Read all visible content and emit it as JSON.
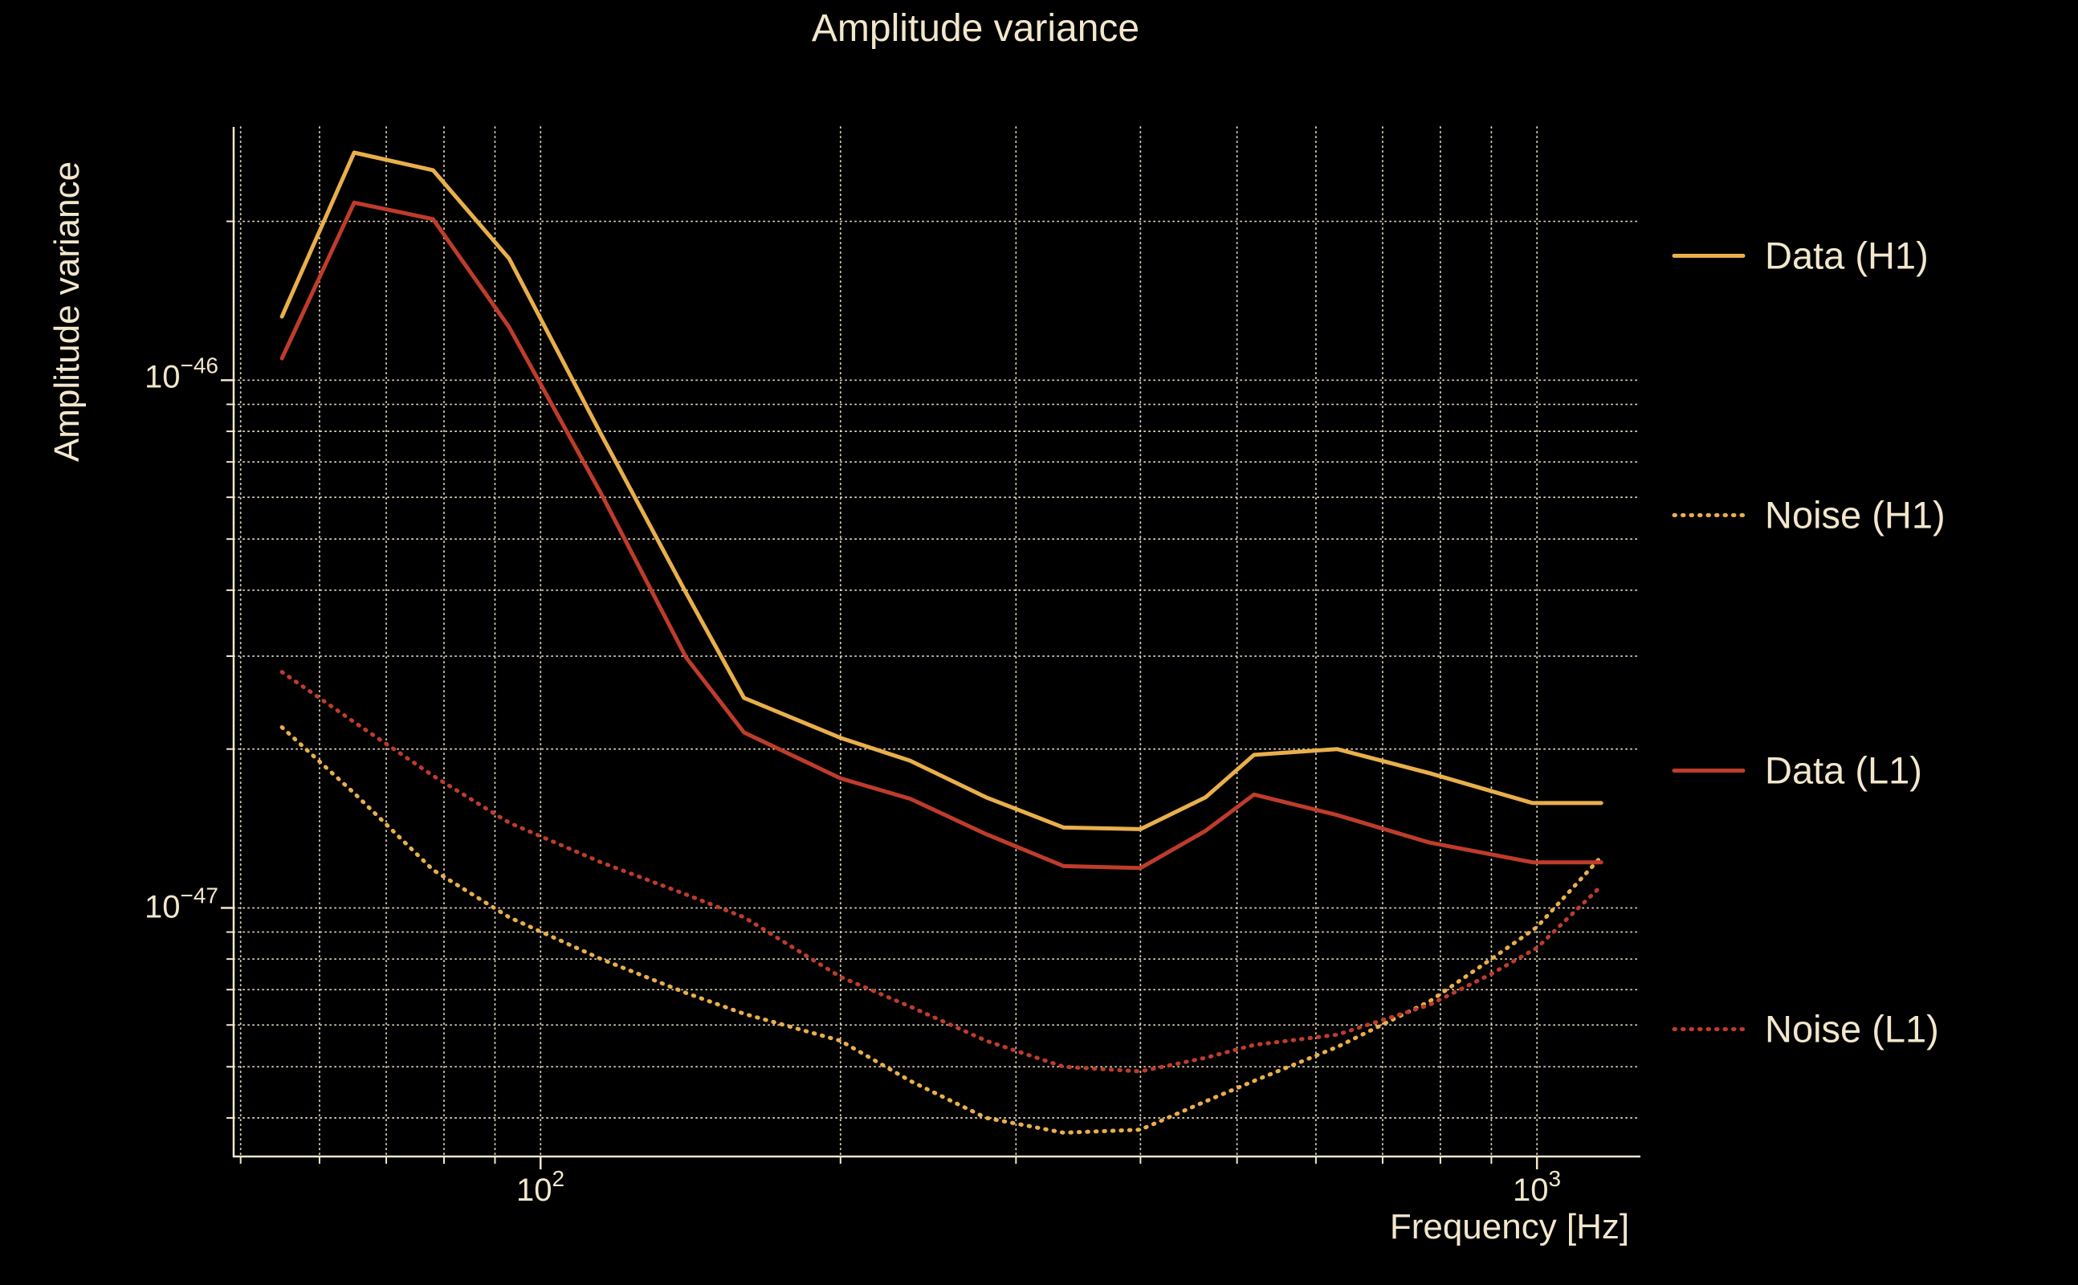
{
  "title": "Amplitude variance",
  "colors": {
    "background": "#000000",
    "foreground": "#f2e7cc",
    "h1_gold": "#e9af4b",
    "l1_red": "#be3c2b"
  },
  "y_axis": {
    "label": "Amplitude variance",
    "ticks": [
      {
        "base": "10",
        "exp": "−46"
      },
      {
        "base": "10",
        "exp": "−47"
      }
    ]
  },
  "x_axis": {
    "label": "Frequency [Hz]",
    "ticks": [
      {
        "base": "10",
        "exp": "2"
      },
      {
        "base": "10",
        "exp": "3"
      }
    ]
  },
  "legend": [
    {
      "label": "Data (H1)",
      "color": "#e9af4b",
      "style": "solid"
    },
    {
      "label": "Noise (H1)",
      "color": "#e9af4b",
      "style": "dotted"
    },
    {
      "label": "Data (L1)",
      "color": "#be3c2b",
      "style": "solid"
    },
    {
      "label": "Noise (L1)",
      "color": "#be3c2b",
      "style": "dotted"
    }
  ],
  "chart_data": {
    "type": "line",
    "title": "Amplitude variance",
    "xlabel": "Frequency [Hz]",
    "ylabel": "Amplitude variance",
    "x_scale": "log",
    "y_scale": "log",
    "xlim": [
      49.2,
      1270
    ],
    "ylim": [
      3.38e-48,
      3.02e-46
    ],
    "grid": true,
    "legend_position": "right-outside",
    "x_gridlines": [
      50,
      60,
      70,
      80,
      90,
      100,
      200,
      300,
      400,
      500,
      600,
      700,
      800,
      900,
      1000
    ],
    "x_major_ticks": [
      100,
      1000
    ],
    "y_gridlines": [
      4e-48,
      5e-48,
      6e-48,
      7e-48,
      8e-48,
      9e-48,
      1e-47,
      2e-47,
      3e-47,
      4e-47,
      5e-47,
      6e-47,
      7e-47,
      8e-47,
      9e-47,
      1e-46,
      2e-46
    ],
    "y_major_ticks": [
      1e-46,
      1e-47
    ],
    "series": [
      {
        "name": "Data (H1)",
        "color": "#e9af4b",
        "style": "solid",
        "points": [
          [
            55,
            1.32e-46
          ],
          [
            65,
            2.7e-46
          ],
          [
            78,
            2.5e-46
          ],
          [
            93,
            1.7e-46
          ],
          [
            115,
            7.9e-47
          ],
          [
            140,
            3.95e-47
          ],
          [
            160,
            2.5e-47
          ],
          [
            200,
            2.1e-47
          ],
          [
            235,
            1.9e-47
          ],
          [
            280,
            1.62e-47
          ],
          [
            335,
            1.42e-47
          ],
          [
            400,
            1.41e-47
          ],
          [
            465,
            1.62e-47
          ],
          [
            520,
            1.95e-47
          ],
          [
            630,
            2e-47
          ],
          [
            780,
            1.8e-47
          ],
          [
            990,
            1.58e-47
          ],
          [
            1160,
            1.58e-47
          ]
        ]
      },
      {
        "name": "Noise (H1)",
        "color": "#e9af4b",
        "style": "dotted",
        "points": [
          [
            55,
            2.2e-47
          ],
          [
            65,
            1.65e-47
          ],
          [
            78,
            1.18e-47
          ],
          [
            93,
            9.6e-48
          ],
          [
            115,
            8e-48
          ],
          [
            140,
            6.9e-48
          ],
          [
            160,
            6.3e-48
          ],
          [
            200,
            5.6e-48
          ],
          [
            235,
            4.7e-48
          ],
          [
            280,
            4e-48
          ],
          [
            335,
            3.75e-48
          ],
          [
            400,
            3.8e-48
          ],
          [
            465,
            4.3e-48
          ],
          [
            520,
            4.7e-48
          ],
          [
            630,
            5.45e-48
          ],
          [
            780,
            6.65e-48
          ],
          [
            900,
            8e-48
          ],
          [
            1000,
            9.2e-48
          ],
          [
            1160,
            1.25e-47
          ]
        ]
      },
      {
        "name": "Data (L1)",
        "color": "#be3c2b",
        "style": "solid",
        "points": [
          [
            55,
            1.1e-46
          ],
          [
            65,
            2.17e-46
          ],
          [
            78,
            2.02e-46
          ],
          [
            93,
            1.26e-46
          ],
          [
            115,
            6.1e-47
          ],
          [
            140,
            2.98e-47
          ],
          [
            160,
            2.15e-47
          ],
          [
            200,
            1.76e-47
          ],
          [
            235,
            1.61e-47
          ],
          [
            280,
            1.38e-47
          ],
          [
            335,
            1.2e-47
          ],
          [
            400,
            1.19e-47
          ],
          [
            465,
            1.4e-47
          ],
          [
            520,
            1.64e-47
          ],
          [
            630,
            1.5e-47
          ],
          [
            780,
            1.33e-47
          ],
          [
            990,
            1.22e-47
          ],
          [
            1160,
            1.22e-47
          ]
        ]
      },
      {
        "name": "Noise (L1)",
        "color": "#be3c2b",
        "style": "dotted",
        "points": [
          [
            55,
            2.8e-47
          ],
          [
            65,
            2.25e-47
          ],
          [
            78,
            1.78e-47
          ],
          [
            93,
            1.45e-47
          ],
          [
            115,
            1.22e-47
          ],
          [
            140,
            1.06e-47
          ],
          [
            160,
            9.6e-48
          ],
          [
            200,
            7.4e-48
          ],
          [
            235,
            6.5e-48
          ],
          [
            280,
            5.6e-48
          ],
          [
            335,
            5e-48
          ],
          [
            400,
            4.9e-48
          ],
          [
            465,
            5.2e-48
          ],
          [
            520,
            5.5e-48
          ],
          [
            630,
            5.75e-48
          ],
          [
            780,
            6.55e-48
          ],
          [
            900,
            7.5e-48
          ],
          [
            1000,
            8.4e-48
          ],
          [
            1160,
            1.1e-47
          ]
        ]
      }
    ]
  }
}
